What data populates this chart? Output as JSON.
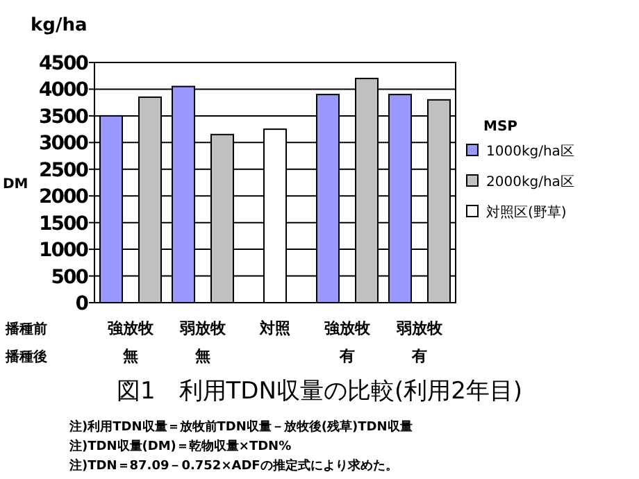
{
  "chart_data": {
    "type": "bar",
    "title": "図1　利用TDN収量の比較(利用2年目)",
    "ylabel": "DM",
    "legend_title": "MSP",
    "annotations": [
      "kg/ha",
      "播種前",
      "播種後",
      "注)利用TDN収量＝放牧前TDN収量－放牧後(残草)TDN収量",
      "注)TDN収量(DM)＝乾物収量×TDN%",
      "注)TDN＝87.09－0.752×ADFの推定式により求めた。"
    ],
    "categories": [
      "強放牧無",
      "弱放牧無",
      "対照",
      "強放牧有",
      "弱放牧有"
    ],
    "series": [
      {
        "name": "1000kg/ha区",
        "color": "#9999ff",
        "values": [
          3500,
          4050,
          null,
          3900,
          3900
        ]
      },
      {
        "name": "2000kg/ha区",
        "color": "#c0c0c0",
        "values": [
          3850,
          3150,
          null,
          4200,
          3800
        ]
      },
      {
        "name": "対照区(野草)",
        "color": "#ffffff",
        "values": [
          null,
          null,
          3250,
          null,
          null
        ]
      }
    ],
    "ylim": [
      0,
      4500
    ],
    "yticks": [
      0,
      500,
      1000,
      1500,
      2000,
      2500,
      3000,
      3500,
      4000,
      4500
    ],
    "grid": "y",
    "legend": "right"
  }
}
